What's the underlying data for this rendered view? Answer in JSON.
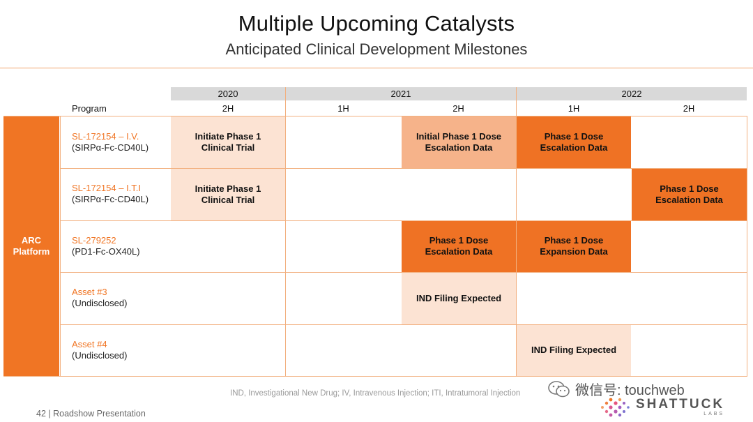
{
  "header": {
    "title": "Multiple Upcoming Catalysts",
    "subtitle": "Anticipated Clinical Development Milestones"
  },
  "timeline": {
    "years": [
      "2020",
      "2021",
      "2022"
    ],
    "program_label": "Program",
    "halves": [
      "2H",
      "1H",
      "2H",
      "1H",
      "2H"
    ]
  },
  "platform": {
    "line1": "ARC",
    "line2": "Platform"
  },
  "programs": [
    {
      "name": "SL-172154 – I.V.",
      "sub": "(SIRPα-Fc-CD40L)",
      "milestones": [
        {
          "line1": "Initiate Phase 1",
          "line2": "Clinical Trial"
        },
        {
          "line1": "Initial Phase 1 Dose",
          "line2": "Escalation Data"
        },
        {
          "line1": "Phase 1 Dose",
          "line2": "Escalation Data"
        }
      ]
    },
    {
      "name": "SL-172154 – I.T.I",
      "sub": "(SIRPα-Fc-CD40L)",
      "milestones": [
        {
          "line1": "Initiate Phase 1",
          "line2": "Clinical Trial"
        },
        {
          "line1": "Phase 1 Dose",
          "line2": "Escalation Data"
        }
      ]
    },
    {
      "name": "SL-279252",
      "sub": "(PD1-Fc-OX40L)",
      "milestones": [
        {
          "line1": "Phase 1 Dose",
          "line2": "Escalation Data"
        },
        {
          "line1": "Phase 1 Dose",
          "line2": "Expansion Data"
        }
      ]
    },
    {
      "name": "Asset #3",
      "sub": "(Undisclosed)",
      "milestones": [
        {
          "line1": "IND Filing Expected"
        }
      ]
    },
    {
      "name": "Asset #4",
      "sub": "(Undisclosed)",
      "milestones": [
        {
          "line1": "IND Filing Expected"
        }
      ]
    }
  ],
  "footer": {
    "footnote": "IND, Investigational New Drug; IV, Intravenous Injection; ITI, Intratumoral Injection",
    "page": "42  |  Roadshow Presentation",
    "watermark": "微信号: touchweb",
    "logo_main": "SHATTUCK",
    "logo_sub": "LABS"
  },
  "colors": {
    "accent": "#f07524",
    "light": "#fce3d3",
    "medium": "#f6b38a",
    "dark": "#ef7224"
  }
}
